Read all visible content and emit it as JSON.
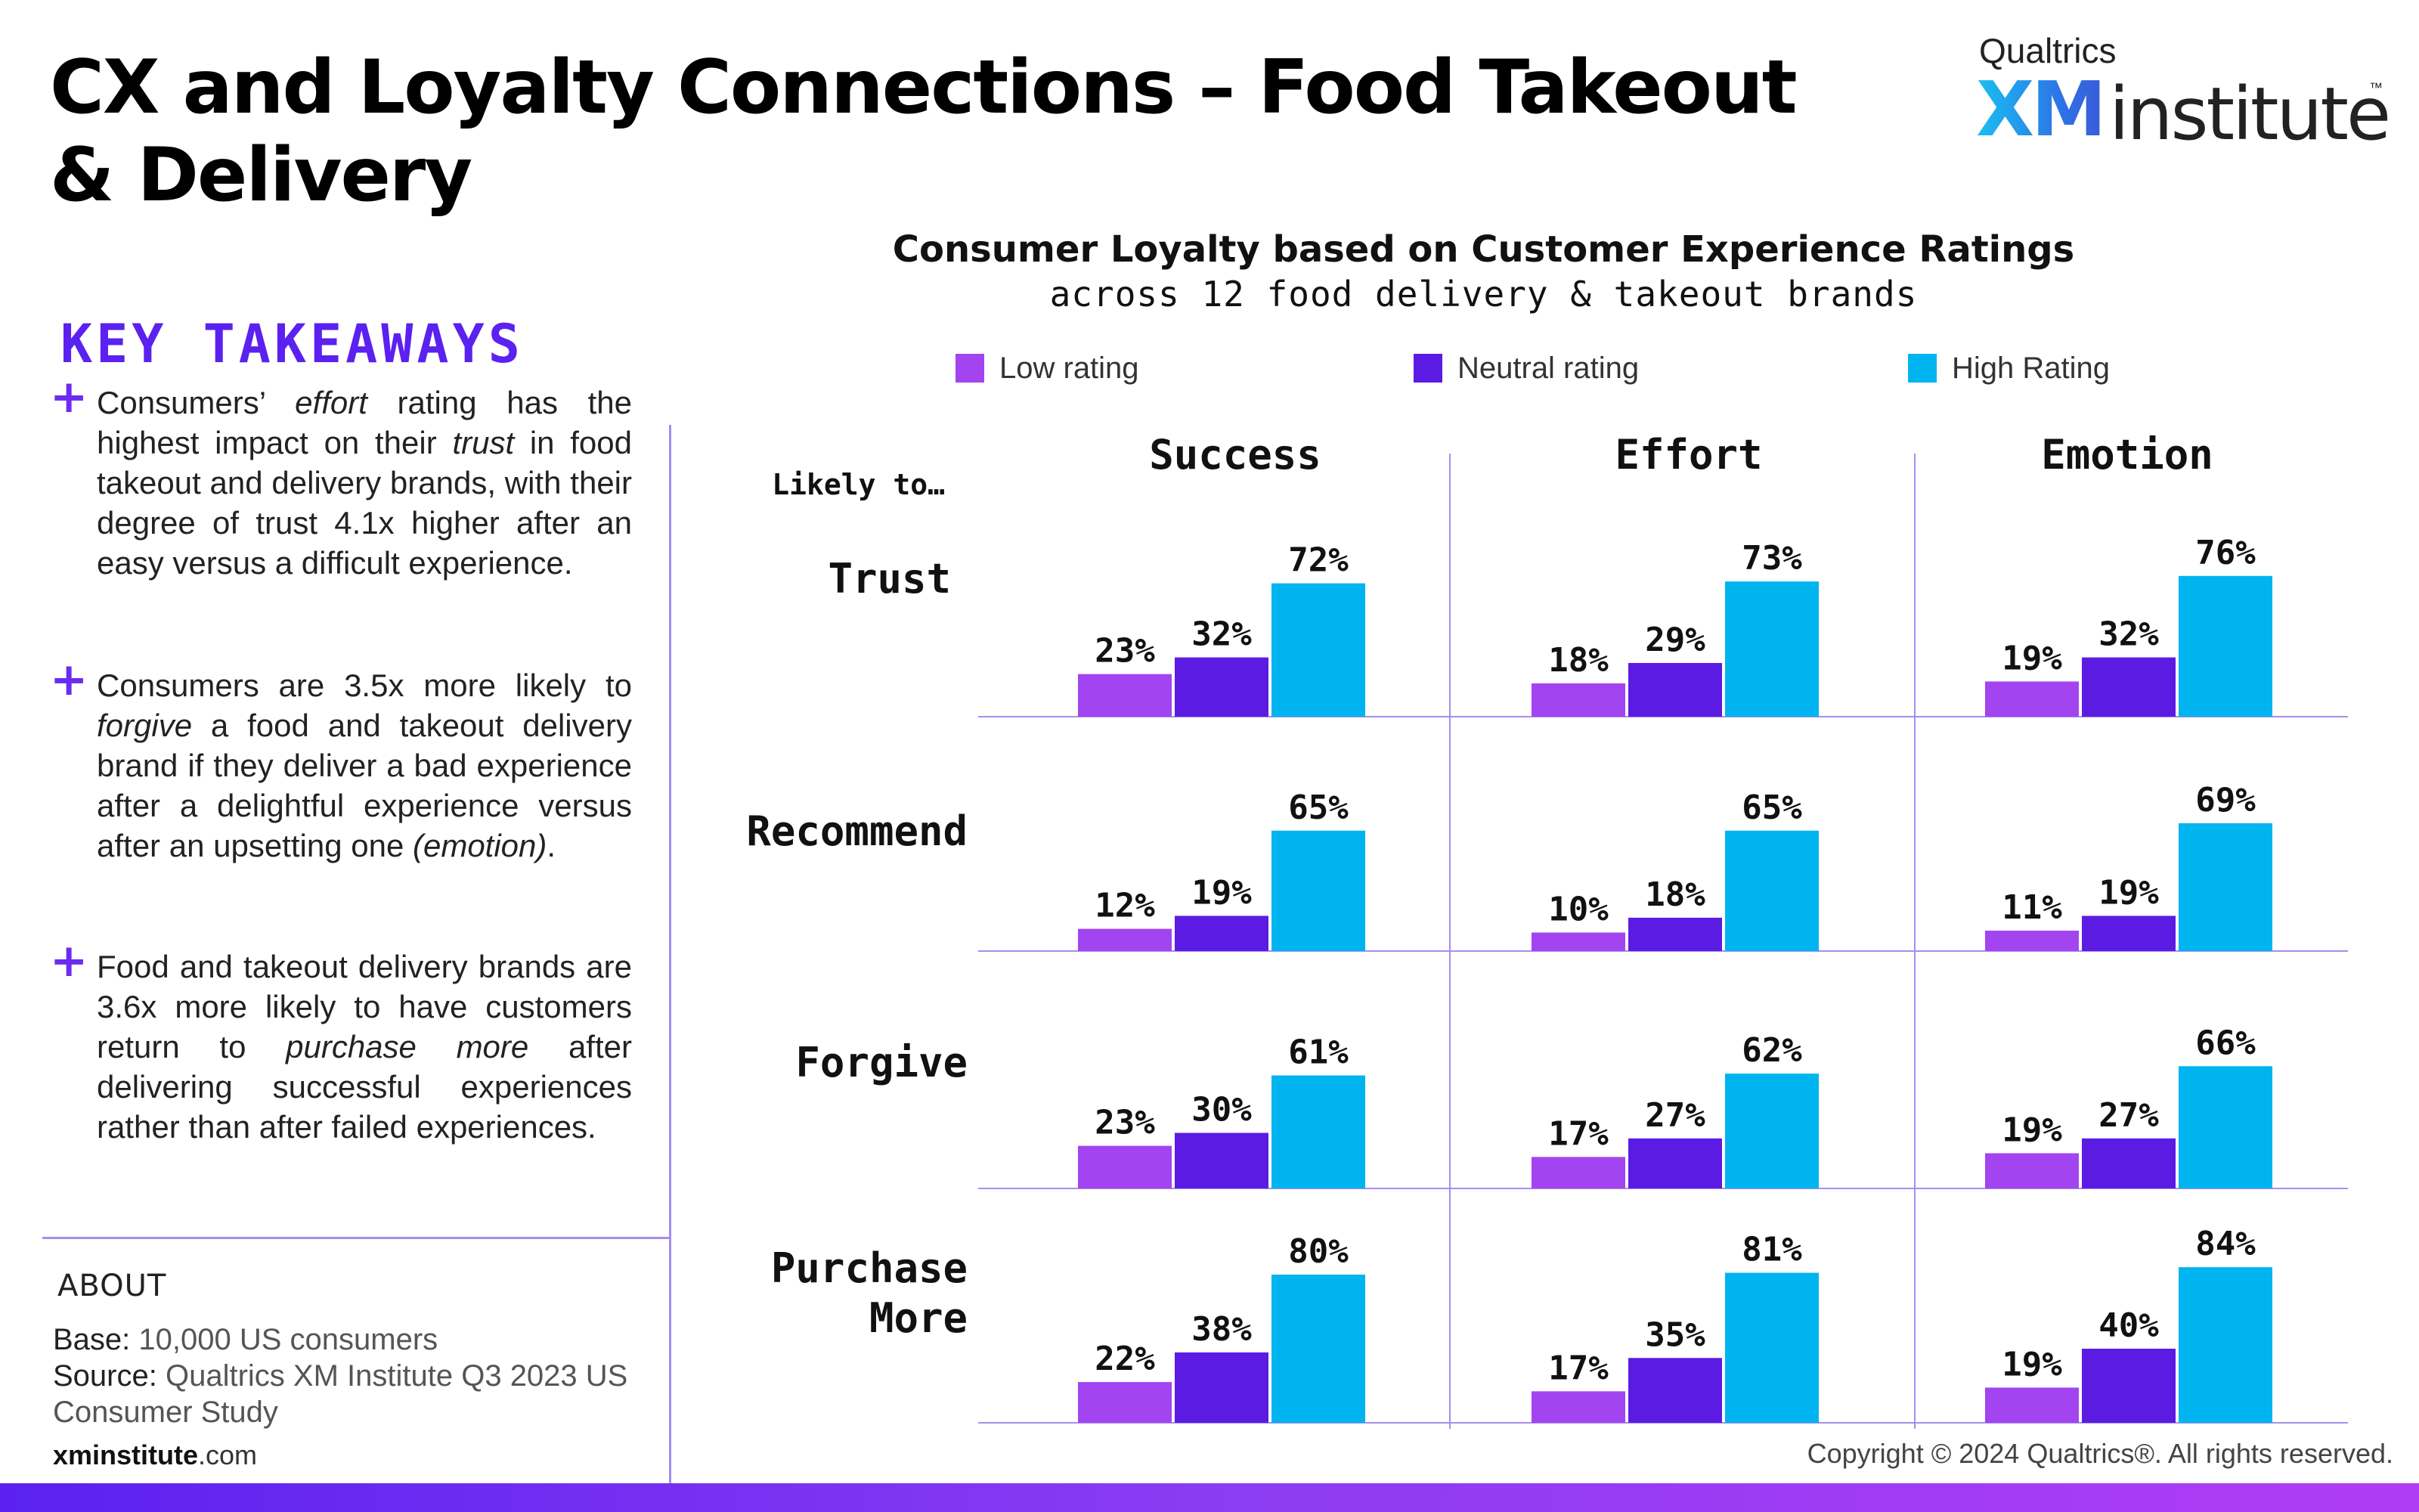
{
  "page": {
    "title": "CX and Loyalty Connections – Food Takeout & Delivery"
  },
  "logo": {
    "brand": "Qualtrics",
    "xm": "XM",
    "institute": "institute",
    "tm": "™"
  },
  "key_takeaways": {
    "title": "KEY TAKEAWAYS",
    "items": [
      "Consumers’ effort rating has the highest impact on their trust in food takeout and delivery brands, with their degree of trust 4.1x higher after an easy versus a difficult experience.",
      "Consumers are 3.5x more likely to forgive a food and takeout delivery brand if they deliver a bad experience after a delightful experience versus after an upsetting one (emotion).",
      "Food and takeout delivery brands are 3.6x more likely to have customers return to purchase more after delivering successful experiences rather than after failed experiences."
    ]
  },
  "about": {
    "title": "ABOUT",
    "base_label": "Base:",
    "base_value": "10,000 US consumers",
    "source_label": "Source:",
    "source_value": "Qualtrics XM Institute Q3 2023 US Consumer Study",
    "site_bold": "xminstitute",
    "site_rest": ".com"
  },
  "copyright": "Copyright © 2024 Qualtrics®. All rights reserved.",
  "colors": {
    "low": "#a244f0",
    "neutral": "#5b1be3",
    "high": "#00b4ef",
    "accent": "#5b21f0",
    "divider": "#a58ef0"
  },
  "chart_data": {
    "type": "bar",
    "title": "Consumer Loyalty based on Customer Experience Ratings",
    "subtitle": "across 12 food delivery & takeout brands",
    "row_axis_label": "Likely to…",
    "legend": [
      "Low rating",
      "Neutral rating",
      "High Rating"
    ],
    "legend_position": "top",
    "columns": [
      "Success",
      "Effort",
      "Emotion"
    ],
    "rows": [
      "Trust",
      "Recommend",
      "Forgive",
      "Purchase More"
    ],
    "unit": "%",
    "values": {
      "Trust": {
        "Success": [
          23,
          32,
          72
        ],
        "Effort": [
          18,
          29,
          73
        ],
        "Emotion": [
          19,
          32,
          76
        ]
      },
      "Recommend": {
        "Success": [
          12,
          19,
          65
        ],
        "Effort": [
          10,
          18,
          65
        ],
        "Emotion": [
          11,
          19,
          69
        ]
      },
      "Forgive": {
        "Success": [
          23,
          30,
          61
        ],
        "Effort": [
          17,
          27,
          62
        ],
        "Emotion": [
          19,
          27,
          66
        ]
      },
      "Purchase More": {
        "Success": [
          22,
          38,
          80
        ],
        "Effort": [
          17,
          35,
          81
        ],
        "Emotion": [
          19,
          40,
          84
        ]
      }
    }
  }
}
